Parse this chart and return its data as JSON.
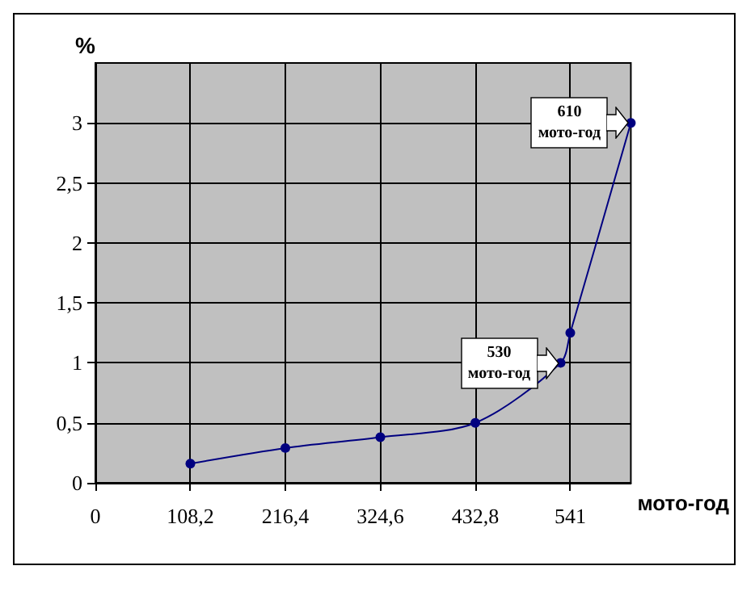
{
  "chart_data": {
    "type": "line",
    "xlabel": "мото-год",
    "ylabel": "%",
    "x": [
      108.2,
      216.4,
      324.6,
      432.8,
      530,
      541,
      610
    ],
    "series": [
      {
        "color": "#000080",
        "values": [
          0.16,
          0.29,
          0.38,
          0.5,
          1.0,
          1.25,
          3.0
        ]
      }
    ],
    "xlim": [
      0,
      610
    ],
    "xticks": [
      0,
      {
        "value": 108.2,
        "label": "108,2"
      },
      {
        "value": 216.4,
        "label": "216,4"
      },
      {
        "value": 324.6,
        "label": "324,6"
      },
      {
        "value": 432.8,
        "label": "432,8"
      },
      541
    ],
    "ylim": [
      0,
      3.5
    ],
    "yticks": [
      0,
      {
        "value": 0.5,
        "label": "0,5"
      },
      1,
      {
        "value": 1.5,
        "label": "1,5"
      },
      2,
      {
        "value": 2.5,
        "label": "2,5"
      },
      3
    ],
    "annotations": [
      {
        "text": "530 мото-год",
        "x": 530,
        "y": 1
      },
      {
        "text": "610 мото-год",
        "x": 610,
        "y": 3
      }
    ],
    "grid": true,
    "marker": "circle",
    "line_style": "solid"
  }
}
